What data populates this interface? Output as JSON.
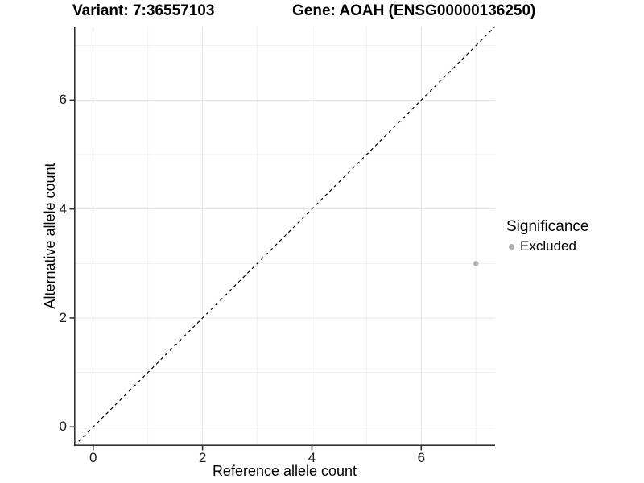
{
  "header": {
    "title_left": "Variant: 7:36557103",
    "title_right": "Gene: AOAH (ENSG00000136250)"
  },
  "chart_data": {
    "type": "scatter",
    "xlabel": "Reference allele count",
    "ylabel": "Alternative allele count",
    "xlim": [
      -0.35,
      7.35
    ],
    "ylim": [
      -0.35,
      7.35
    ],
    "x_major_ticks": [
      0,
      2,
      4,
      6
    ],
    "y_major_ticks": [
      0,
      2,
      4,
      6
    ],
    "x_minor_gridlines": [
      1,
      3,
      5,
      7
    ],
    "y_minor_gridlines": [
      1,
      3,
      5,
      7
    ],
    "grid": true,
    "series": [
      {
        "name": "Excluded",
        "color": "#aeaeae",
        "points": [
          {
            "x": 7,
            "y": 3
          }
        ]
      }
    ],
    "reference_line": {
      "kind": "identity-diagonal",
      "style": "dashed",
      "color": "#000000"
    },
    "legend": {
      "title": "Significance",
      "position": "right",
      "entries": [
        {
          "label": "Excluded",
          "color": "#aeaeae"
        }
      ]
    },
    "colors": {
      "grid_major": "#e4e4e4",
      "grid_minor": "#f1f1f1",
      "axis_line": "#333333",
      "text": "#000000",
      "background": "#ffffff"
    }
  }
}
